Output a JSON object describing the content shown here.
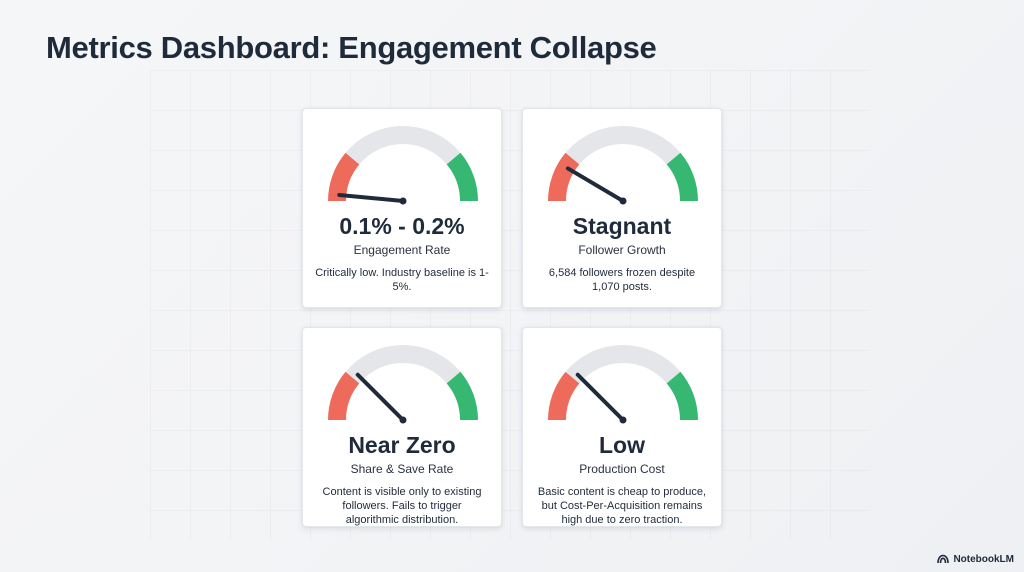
{
  "title": "Metrics Dashboard: Engagement Collapse",
  "colors": {
    "low": "#ee6a5a",
    "mid": "#e4e6ea",
    "high": "#36b872",
    "needle": "#1f2a3a",
    "text": "#1f2a3a"
  },
  "cards": [
    {
      "value": "0.1% - 0.2%",
      "label": "Engagement Rate",
      "description": "Critically low. Industry baseline is 1-5%.",
      "gauge_fraction": 0.03
    },
    {
      "value": "Stagnant",
      "label": "Follower Growth",
      "description": "6,584 followers frozen despite 1,070 posts.",
      "gauge_fraction": 0.17
    },
    {
      "value": "Near Zero",
      "label": "Share & Save Rate",
      "description": "Content is visible only to existing followers. Fails to trigger algorithmic distribution.",
      "gauge_fraction": 0.25
    },
    {
      "value": "Low",
      "label": "Production Cost",
      "description": "Basic content is cheap to produce, but Cost-Per-Acquisition remains high due to zero traction.",
      "gauge_fraction": 0.25
    }
  ],
  "brand": {
    "name": "NotebookLM",
    "icon": "notebooklm-logo-icon"
  }
}
